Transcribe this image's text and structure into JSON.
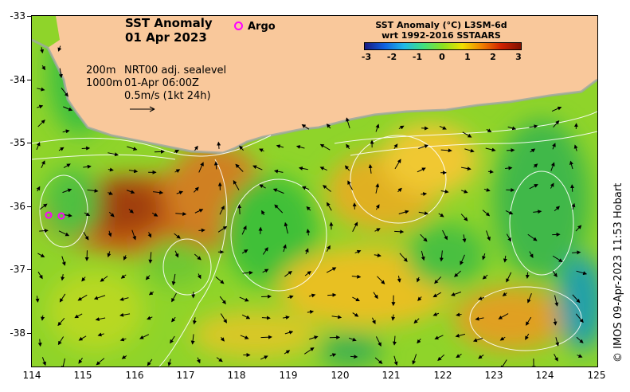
{
  "title": {
    "line1": "SST Anomaly",
    "line2": "01 Apr 2023"
  },
  "argo_label": "Argo",
  "legend": {
    "title_line1": "SST Anomaly (°C) L3SM-6d",
    "title_line2": "wrt 1992-2016 SSTAARS",
    "ticks": [
      "-3",
      "-2",
      "-1",
      "0",
      "1",
      "2",
      "3"
    ]
  },
  "contour_labels": {
    "d200": "200m",
    "d1000": "1000m"
  },
  "info": {
    "source": "NRT00 adj. sealevel",
    "time": "01-Apr 06:00Z",
    "scale": "0.5m/s (1kt 24h)"
  },
  "credit": "© IMOS 09-Apr-2023 11:53 Hobart",
  "axes": {
    "lat_labels": [
      "-33",
      "-34",
      "-35",
      "-36",
      "-37",
      "-38"
    ],
    "lon_labels": [
      "114",
      "115",
      "116",
      "117",
      "118",
      "119",
      "120",
      "121",
      "122",
      "123",
      "124",
      "125"
    ]
  },
  "colors": {
    "land": "#f9c89b",
    "argo": "#ff00ff",
    "ocean_base": "#8fd42a"
  }
}
